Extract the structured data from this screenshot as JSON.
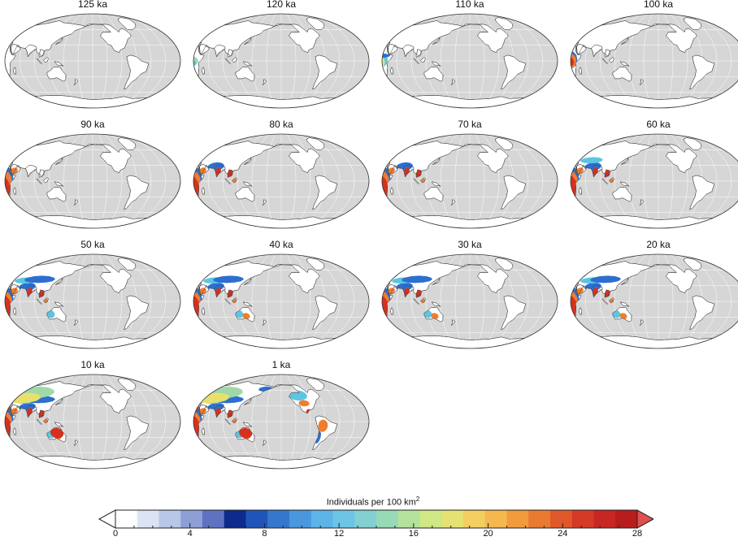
{
  "panels": [
    {
      "label": "125 ka",
      "stage": 0
    },
    {
      "label": "120 ka",
      "stage": 1
    },
    {
      "label": "110 ka",
      "stage": 2
    },
    {
      "label": "100 ka",
      "stage": 3
    },
    {
      "label": "90 ka",
      "stage": 4
    },
    {
      "label": "80 ka",
      "stage": 5
    },
    {
      "label": "70 ka",
      "stage": 6
    },
    {
      "label": "60 ka",
      "stage": 7
    },
    {
      "label": "50 ka",
      "stage": 8
    },
    {
      "label": "40 ka",
      "stage": 9
    },
    {
      "label": "30 ka",
      "stage": 10
    },
    {
      "label": "20 ka",
      "stage": 11
    },
    {
      "label": "10 ka",
      "stage": 12
    },
    {
      "label": "1 ka",
      "stage": 13
    }
  ],
  "legend": {
    "title": "Individuals per 100 km",
    "title_superscript": "2",
    "min": 0,
    "max": 28,
    "tick_values": [
      0,
      4,
      8,
      12,
      16,
      20,
      24,
      28
    ],
    "tick_labels": [
      "0",
      "4",
      "8",
      "12",
      "16",
      "20",
      "24",
      "28"
    ],
    "colors": [
      "#ffffff",
      "#dbe3f4",
      "#b8c6e8",
      "#8d9fd6",
      "#5d72c0",
      "#0d2a8c",
      "#1f55b8",
      "#3577cc",
      "#4a97dd",
      "#5cb4e8",
      "#6cc5e6",
      "#82d0d2",
      "#98d9b6",
      "#b3e39b",
      "#cfe784",
      "#e6e173",
      "#f2cf60",
      "#f4b84e",
      "#f29b3c",
      "#ea7a2f",
      "#e0582a",
      "#d43a25",
      "#c82622",
      "#b81c1c"
    ],
    "low_arrow_color": "#ffffff",
    "high_arrow_color": "#e05050"
  },
  "map_colors": {
    "ocean": "#d6d6d6",
    "land": "#ffffff",
    "grid": "#ffffff",
    "outline": "#444444"
  }
}
